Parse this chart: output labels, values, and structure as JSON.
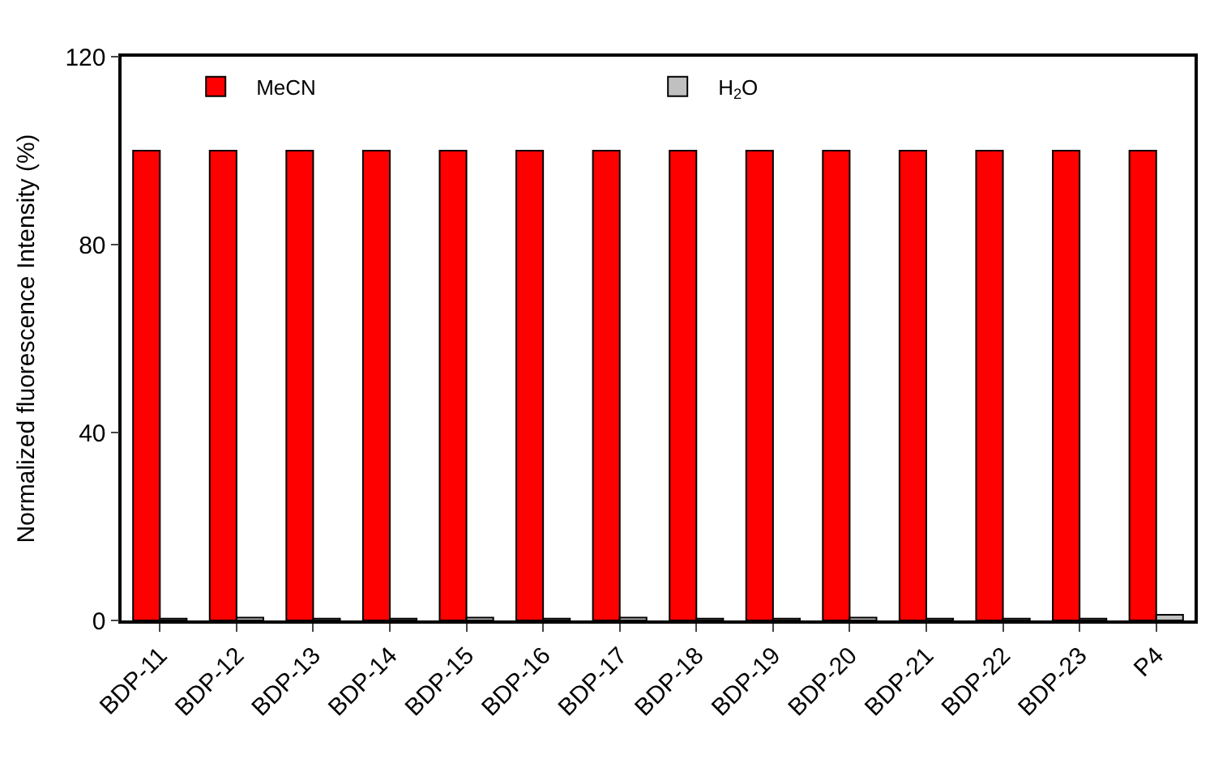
{
  "chart_data": {
    "type": "bar",
    "ylabel": "Normalized fluorescence Intensity (%)",
    "categories": [
      "BDP-11",
      "BDP-12",
      "BDP-13",
      "BDP-14",
      "BDP-15",
      "BDP-16",
      "BDP-17",
      "BDP-18",
      "BDP-19",
      "BDP-20",
      "BDP-21",
      "BDP-22",
      "BDP-23",
      "P4"
    ],
    "series": [
      {
        "name": "MeCN",
        "color": "#ff0000",
        "values": [
          100,
          100,
          100,
          100,
          100,
          100,
          100,
          100,
          100,
          100,
          100,
          100,
          100,
          100
        ]
      },
      {
        "name": "H$_{2}$O",
        "color": "#c0c0c0",
        "values": [
          0.4,
          0.6,
          0.4,
          0.4,
          0.6,
          0.4,
          0.6,
          0.4,
          0.4,
          0.6,
          0.4,
          0.4,
          0.4,
          1.2
        ]
      }
    ],
    "ylim": [
      0,
      120
    ],
    "yticks": [
      0,
      40,
      80,
      120
    ],
    "legend": "top"
  }
}
